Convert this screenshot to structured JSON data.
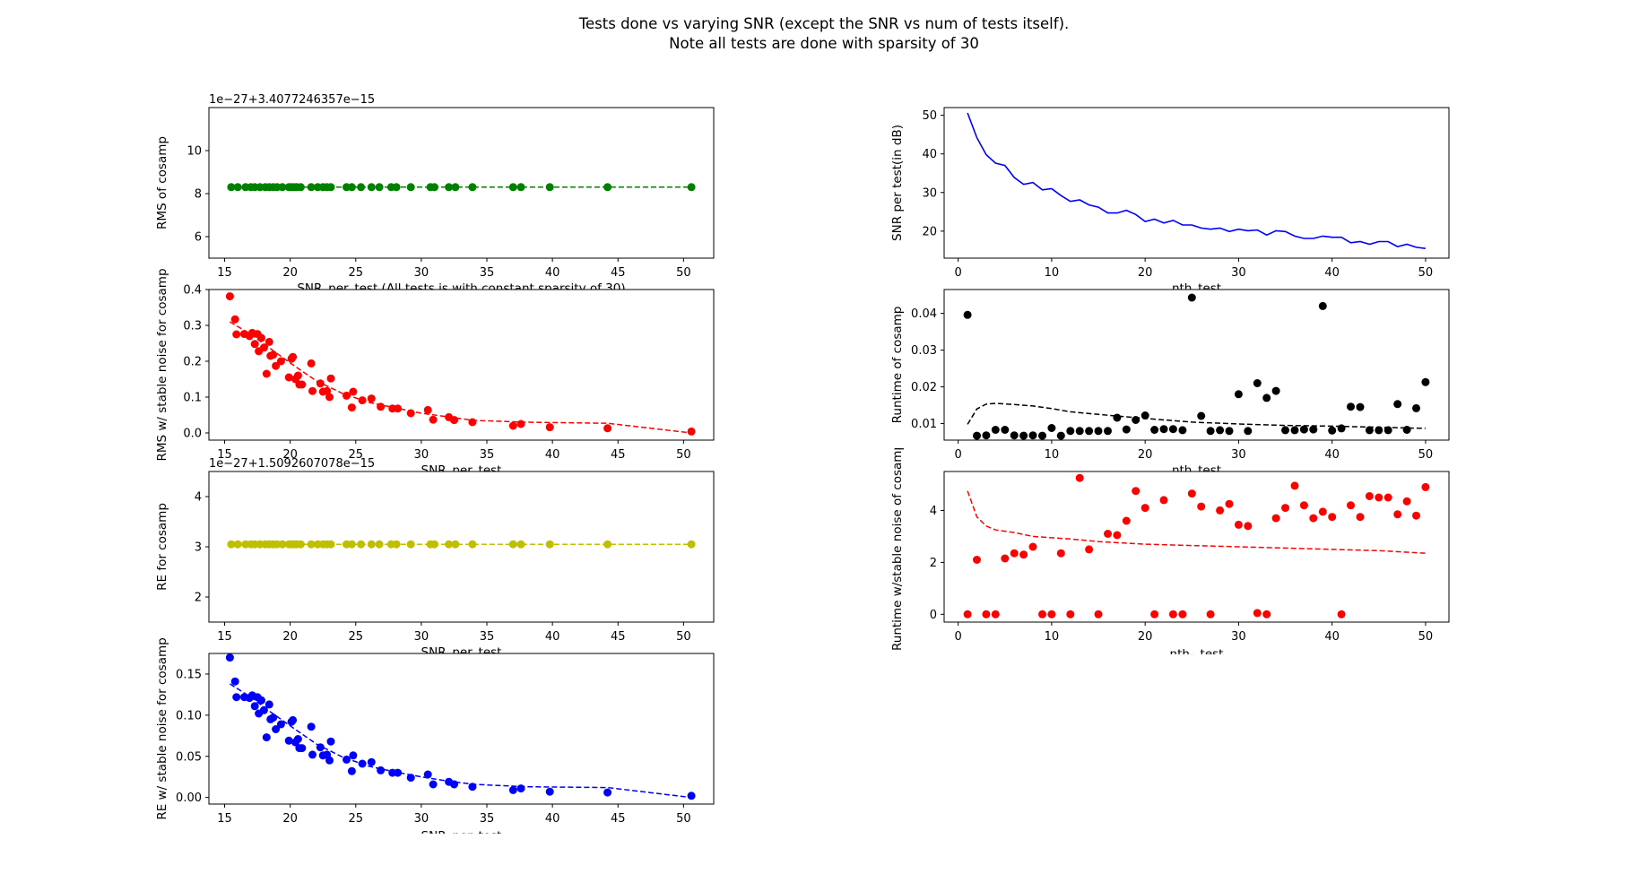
{
  "figure": {
    "title_line1": "Tests done vs varying SNR (except the SNR vs num of tests itself).",
    "title_line2": "Note all tests are done with sparsity of 30"
  },
  "chart_data": [
    {
      "id": "rms-vs-snr",
      "type": "scatter",
      "xlabel": "SNR_per_test  (All tests is with constant sparsity of 30)",
      "ylabel": "RMS of cosamp",
      "offset_text": "1e−27+3.4077246357e−15",
      "xlim": [
        13.8,
        52.3
      ],
      "ylim": [
        5,
        12
      ],
      "xticks": [
        15,
        20,
        25,
        30,
        35,
        40,
        45,
        50
      ],
      "yticks": [
        6,
        8,
        10
      ],
      "grid": false,
      "color": "#008000",
      "line_style": "dashed",
      "x": [
        15.5,
        16.0,
        16.6,
        17.0,
        17.3,
        17.7,
        18.1,
        18.4,
        18.7,
        19.0,
        19.4,
        19.9,
        20.1,
        20.3,
        20.5,
        20.8,
        21.6,
        22.1,
        22.5,
        22.8,
        23.1,
        24.3,
        24.7,
        25.4,
        26.2,
        26.8,
        27.7,
        28.1,
        29.2,
        30.7,
        31.0,
        32.1,
        32.6,
        33.9,
        37.0,
        37.6,
        39.8,
        44.2,
        50.6
      ],
      "y": [
        8.3,
        8.3,
        8.3,
        8.3,
        8.3,
        8.3,
        8.3,
        8.3,
        8.3,
        8.3,
        8.3,
        8.3,
        8.3,
        8.3,
        8.3,
        8.3,
        8.3,
        8.3,
        8.3,
        8.3,
        8.3,
        8.3,
        8.3,
        8.3,
        8.3,
        8.3,
        8.3,
        8.3,
        8.3,
        8.3,
        8.3,
        8.3,
        8.3,
        8.3,
        8.3,
        8.3,
        8.3,
        8.3,
        8.3
      ]
    },
    {
      "id": "snr-per-test",
      "type": "line",
      "xlabel": "nth_test",
      "ylabel": "SNR per test(in dB)",
      "xlim": [
        -1.5,
        52.5
      ],
      "ylim": [
        13,
        52
      ],
      "xticks": [
        0,
        10,
        20,
        30,
        40,
        50
      ],
      "yticks": [
        20,
        30,
        40,
        50
      ],
      "grid": false,
      "color": "#0000ff",
      "line_style": "solid",
      "x": [
        1,
        2,
        3,
        4,
        5,
        6,
        7,
        8,
        9,
        10,
        11,
        12,
        13,
        14,
        15,
        16,
        17,
        18,
        19,
        20,
        21,
        22,
        23,
        24,
        25,
        26,
        27,
        28,
        29,
        30,
        31,
        32,
        33,
        34,
        35,
        36,
        37,
        38,
        39,
        40,
        41,
        42,
        43,
        44,
        45,
        46,
        47,
        48,
        49,
        50
      ],
      "y": [
        50.6,
        44.2,
        39.8,
        37.6,
        37.0,
        33.9,
        32.1,
        32.6,
        30.7,
        31.0,
        29.2,
        27.7,
        28.1,
        26.8,
        26.2,
        24.7,
        24.7,
        25.4,
        24.3,
        22.5,
        23.1,
        22.1,
        22.8,
        21.6,
        21.6,
        20.8,
        20.5,
        20.8,
        19.9,
        20.5,
        20.1,
        20.3,
        19.0,
        20.1,
        19.9,
        18.7,
        18.1,
        18.1,
        18.7,
        18.4,
        18.4,
        17.0,
        17.3,
        16.6,
        17.3,
        17.3,
        16.0,
        16.6,
        15.8,
        15.5
      ]
    },
    {
      "id": "rms-stable-vs-snr",
      "type": "scatter",
      "xlabel": "SNR_per_test",
      "ylabel": "RMS w/ stable noise for cosamp",
      "xlim": [
        13.8,
        52.3
      ],
      "ylim": [
        -0.02,
        0.4
      ],
      "xticks": [
        15,
        20,
        25,
        30,
        35,
        40,
        45,
        50
      ],
      "yticks": [
        0.0,
        0.1,
        0.2,
        0.3,
        0.4
      ],
      "grid": false,
      "color": "#ff0000",
      "line_style": "dashed",
      "x": [
        15.4,
        15.8,
        15.9,
        16.5,
        16.9,
        17.1,
        17.3,
        17.5,
        17.6,
        17.8,
        18.0,
        18.2,
        18.4,
        18.5,
        18.7,
        18.9,
        19.3,
        19.9,
        20.1,
        20.2,
        20.4,
        20.6,
        20.7,
        20.9,
        21.6,
        21.7,
        22.3,
        22.5,
        22.8,
        23.0,
        23.1,
        24.3,
        24.7,
        24.8,
        25.5,
        26.2,
        26.9,
        27.8,
        28.2,
        29.2,
        30.5,
        30.9,
        32.1,
        32.5,
        33.9,
        37.0,
        37.6,
        39.8,
        44.2,
        50.6
      ],
      "y": [
        0.381,
        0.317,
        0.275,
        0.276,
        0.27,
        0.279,
        0.248,
        0.276,
        0.228,
        0.265,
        0.238,
        0.165,
        0.254,
        0.215,
        0.218,
        0.187,
        0.2,
        0.155,
        0.207,
        0.212,
        0.15,
        0.16,
        0.135,
        0.135,
        0.194,
        0.117,
        0.138,
        0.115,
        0.117,
        0.1,
        0.152,
        0.104,
        0.071,
        0.115,
        0.091,
        0.096,
        0.073,
        0.068,
        0.068,
        0.055,
        0.064,
        0.037,
        0.044,
        0.036,
        0.03,
        0.02,
        0.025,
        0.016,
        0.013,
        0.004
      ],
      "trend_x": [
        15.4,
        17,
        18.5,
        20,
        22,
        24,
        26,
        28,
        30,
        32,
        34,
        38,
        44.2,
        50.6
      ],
      "trend_y": [
        0.31,
        0.275,
        0.235,
        0.195,
        0.145,
        0.11,
        0.085,
        0.07,
        0.055,
        0.045,
        0.035,
        0.03,
        0.027,
        0.0
      ]
    },
    {
      "id": "runtime",
      "type": "scatter",
      "xlabel": "nth_test",
      "ylabel": "Runtime of cosamp",
      "xlim": [
        -1.5,
        52.5
      ],
      "ylim": [
        0.0055,
        0.0465
      ],
      "xticks": [
        0,
        10,
        20,
        30,
        40,
        50
      ],
      "yticks": [
        0.01,
        0.02,
        0.03,
        0.04
      ],
      "grid": false,
      "color": "#000000",
      "line_style": "dashed",
      "x": [
        1,
        2,
        3,
        4,
        5,
        6,
        7,
        8,
        9,
        10,
        11,
        12,
        13,
        14,
        15,
        16,
        17,
        18,
        19,
        20,
        21,
        22,
        23,
        24,
        25,
        26,
        27,
        28,
        29,
        30,
        31,
        32,
        33,
        34,
        35,
        36,
        37,
        38,
        39,
        40,
        41,
        42,
        43,
        44,
        45,
        46,
        47,
        48,
        49,
        50
      ],
      "y": [
        0.0396,
        0.0067,
        0.0068,
        0.0083,
        0.0083,
        0.0068,
        0.0067,
        0.0068,
        0.0067,
        0.0088,
        0.0067,
        0.008,
        0.008,
        0.008,
        0.008,
        0.008,
        0.0116,
        0.0084,
        0.011,
        0.0122,
        0.0083,
        0.0085,
        0.0085,
        0.0082,
        0.0443,
        0.0121,
        0.008,
        0.0082,
        0.008,
        0.018,
        0.008,
        0.021,
        0.017,
        0.0189,
        0.0082,
        0.0082,
        0.0084,
        0.0084,
        0.042,
        0.0081,
        0.0087,
        0.0146,
        0.0145,
        0.0082,
        0.0082,
        0.0082,
        0.0153,
        0.0083,
        0.0142,
        0.0213
      ],
      "trend_x": [
        1,
        2,
        3,
        4,
        6,
        8,
        10,
        12,
        15,
        20,
        25,
        30,
        35,
        40,
        45,
        50
      ],
      "trend_y": [
        0.0098,
        0.014,
        0.0153,
        0.0155,
        0.0152,
        0.0148,
        0.0141,
        0.0132,
        0.0125,
        0.0114,
        0.0104,
        0.0099,
        0.0095,
        0.0093,
        0.009,
        0.0087
      ]
    },
    {
      "id": "re-vs-snr",
      "type": "scatter",
      "xlabel": "SNR_per_test",
      "ylabel": "RE for cosamp",
      "offset_text": "1e−27+1.5092607078e−15",
      "xlim": [
        13.8,
        52.3
      ],
      "ylim": [
        1.5,
        4.5
      ],
      "xticks": [
        15,
        20,
        25,
        30,
        35,
        40,
        45,
        50
      ],
      "yticks": [
        2,
        3,
        4
      ],
      "grid": false,
      "color": "#bfbf00",
      "line_style": "dashed",
      "x": [
        15.5,
        16.0,
        16.6,
        17.0,
        17.3,
        17.7,
        18.1,
        18.4,
        18.7,
        19.0,
        19.4,
        19.9,
        20.1,
        20.3,
        20.5,
        20.8,
        21.6,
        22.1,
        22.5,
        22.8,
        23.1,
        24.3,
        24.7,
        25.4,
        26.2,
        26.8,
        27.7,
        28.1,
        29.2,
        30.7,
        31.0,
        32.1,
        32.6,
        33.9,
        37.0,
        37.6,
        39.8,
        44.2,
        50.6
      ],
      "y": [
        3.05,
        3.05,
        3.05,
        3.05,
        3.05,
        3.05,
        3.05,
        3.05,
        3.05,
        3.05,
        3.05,
        3.05,
        3.05,
        3.05,
        3.05,
        3.05,
        3.05,
        3.05,
        3.05,
        3.05,
        3.05,
        3.05,
        3.05,
        3.05,
        3.05,
        3.05,
        3.05,
        3.05,
        3.05,
        3.05,
        3.05,
        3.05,
        3.05,
        3.05,
        3.05,
        3.05,
        3.05,
        3.05,
        3.05
      ]
    },
    {
      "id": "runtime-stable",
      "type": "scatter",
      "xlabel": "nth-_test",
      "ylabel": "Runtime w/stable noise of cosamp",
      "xlim": [
        -1.5,
        52.5
      ],
      "ylim": [
        -0.3,
        5.5
      ],
      "xticks": [
        0,
        10,
        20,
        30,
        40,
        50
      ],
      "yticks": [
        0,
        2,
        4
      ],
      "grid": false,
      "color": "#ff0000",
      "line_style": "dashed",
      "x": [
        1,
        2,
        3,
        4,
        5,
        6,
        7,
        8,
        9,
        10,
        11,
        12,
        13,
        14,
        15,
        16,
        17,
        18,
        19,
        20,
        21,
        22,
        23,
        24,
        25,
        26,
        27,
        28,
        29,
        30,
        31,
        32,
        33,
        34,
        35,
        36,
        37,
        38,
        39,
        40,
        41,
        42,
        43,
        44,
        45,
        46,
        47,
        48,
        49,
        50
      ],
      "y": [
        0.0,
        2.1,
        0.0,
        0.0,
        2.15,
        2.35,
        2.3,
        2.6,
        0.0,
        0.0,
        2.35,
        0.0,
        5.25,
        2.5,
        0.0,
        3.1,
        3.05,
        3.6,
        4.75,
        4.1,
        0.0,
        4.4,
        0.0,
        0.0,
        4.65,
        4.15,
        0.0,
        4.0,
        4.25,
        3.45,
        3.4,
        0.05,
        0.0,
        3.7,
        4.1,
        4.95,
        4.2,
        3.7,
        3.95,
        3.75,
        0.0,
        4.2,
        3.75,
        4.55,
        4.5,
        4.5,
        3.85,
        4.35,
        3.8,
        4.9
      ],
      "trend_x": [
        1,
        2,
        3,
        4,
        6,
        8,
        10,
        12,
        15,
        20,
        25,
        30,
        35,
        40,
        45,
        50
      ],
      "trend_y": [
        4.75,
        3.75,
        3.4,
        3.25,
        3.15,
        3.0,
        2.95,
        2.9,
        2.8,
        2.7,
        2.65,
        2.6,
        2.55,
        2.5,
        2.45,
        2.35
      ]
    },
    {
      "id": "re-stable-vs-snr",
      "type": "scatter",
      "xlabel": "SNR_per_test",
      "ylabel": "RE w/ stable noise for cosamp",
      "xlim": [
        13.8,
        52.3
      ],
      "ylim": [
        -0.008,
        0.175
      ],
      "xticks": [
        15,
        20,
        25,
        30,
        35,
        40,
        45,
        50
      ],
      "yticks": [
        0.0,
        0.05,
        0.1,
        0.15
      ],
      "grid": false,
      "color": "#0000ff",
      "line_style": "dashed",
      "x": [
        15.4,
        15.8,
        15.9,
        16.5,
        16.9,
        17.1,
        17.3,
        17.5,
        17.6,
        17.8,
        18.0,
        18.2,
        18.4,
        18.5,
        18.7,
        18.9,
        19.3,
        19.9,
        20.1,
        20.2,
        20.4,
        20.6,
        20.7,
        20.9,
        21.6,
        21.7,
        22.3,
        22.5,
        22.8,
        23.0,
        23.1,
        24.3,
        24.7,
        24.8,
        25.5,
        26.2,
        26.9,
        27.8,
        28.2,
        29.2,
        30.5,
        30.9,
        32.1,
        32.5,
        33.9,
        37.0,
        37.6,
        39.8,
        44.2,
        50.6
      ],
      "y": [
        0.17,
        0.141,
        0.122,
        0.122,
        0.121,
        0.124,
        0.111,
        0.122,
        0.102,
        0.118,
        0.106,
        0.073,
        0.113,
        0.095,
        0.097,
        0.083,
        0.089,
        0.069,
        0.092,
        0.094,
        0.067,
        0.071,
        0.06,
        0.06,
        0.086,
        0.052,
        0.061,
        0.051,
        0.052,
        0.045,
        0.068,
        0.046,
        0.032,
        0.051,
        0.041,
        0.043,
        0.033,
        0.03,
        0.03,
        0.024,
        0.028,
        0.016,
        0.019,
        0.016,
        0.013,
        0.009,
        0.011,
        0.007,
        0.006,
        0.002
      ],
      "trend_x": [
        15.4,
        17,
        18.5,
        20,
        22,
        24,
        26,
        28,
        30,
        32,
        34,
        38,
        44.2,
        50.6
      ],
      "trend_y": [
        0.138,
        0.122,
        0.104,
        0.087,
        0.065,
        0.049,
        0.038,
        0.031,
        0.025,
        0.02,
        0.016,
        0.013,
        0.012,
        0.0
      ]
    }
  ]
}
